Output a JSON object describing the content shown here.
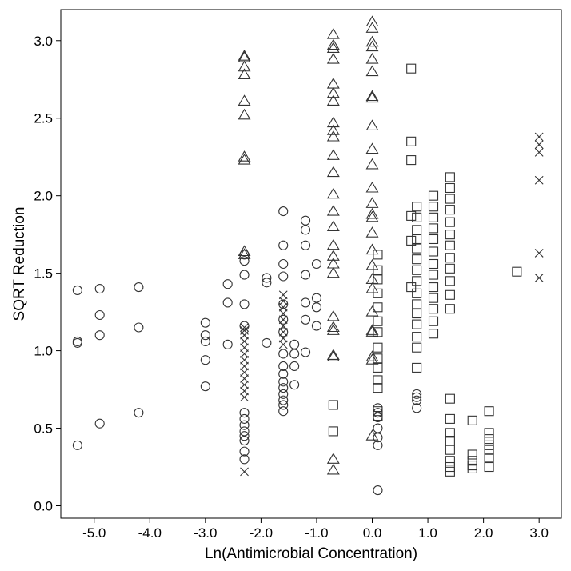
{
  "chart_data": {
    "type": "scatter",
    "title": "",
    "xlabel": "Ln(Antimicrobial Concentration)",
    "ylabel": "SQRT Reduction",
    "xlim": [
      -5.6,
      3.4
    ],
    "ylim": [
      -0.08,
      3.2
    ],
    "xticks": [
      -5.0,
      -4.0,
      -3.0,
      -2.0,
      -1.0,
      0.0,
      1.0,
      2.0,
      3.0
    ],
    "xtick_labels": [
      "-5.0",
      "-4.0",
      "-3.0",
      "-2.0",
      "-1.0",
      "0.0",
      "1.0",
      "2.0",
      "3.0"
    ],
    "yticks": [
      0.0,
      0.5,
      1.0,
      1.5,
      2.0,
      2.5,
      3.0
    ],
    "ytick_labels": [
      "0.0",
      "0.5",
      "1.0",
      "1.5",
      "2.0",
      "2.5",
      "3.0"
    ],
    "grid": false,
    "legend": "none",
    "series": [
      {
        "marker": "circle",
        "points": [
          [
            -5.3,
            1.39
          ],
          [
            -5.3,
            1.06
          ],
          [
            -5.3,
            1.05
          ],
          [
            -5.3,
            0.39
          ],
          [
            -4.9,
            1.4
          ],
          [
            -4.9,
            1.23
          ],
          [
            -4.9,
            1.1
          ],
          [
            -4.9,
            0.53
          ],
          [
            -4.2,
            1.41
          ],
          [
            -4.2,
            1.15
          ],
          [
            -4.2,
            0.6
          ],
          [
            -3.0,
            1.18
          ],
          [
            -3.0,
            1.1
          ],
          [
            -3.0,
            1.06
          ],
          [
            -3.0,
            0.94
          ],
          [
            -3.0,
            0.77
          ],
          [
            -2.6,
            1.43
          ],
          [
            -2.6,
            1.31
          ],
          [
            -2.6,
            1.04
          ],
          [
            -2.3,
            1.62
          ],
          [
            -2.3,
            1.58
          ],
          [
            -2.3,
            1.49
          ],
          [
            -2.3,
            1.3
          ],
          [
            -2.3,
            1.16
          ],
          [
            -2.3,
            0.6
          ],
          [
            -2.3,
            0.56
          ],
          [
            -2.3,
            0.52
          ],
          [
            -2.3,
            0.48
          ],
          [
            -2.3,
            0.45
          ],
          [
            -2.3,
            0.42
          ],
          [
            -2.3,
            0.35
          ],
          [
            -2.3,
            0.3
          ],
          [
            -1.9,
            1.47
          ],
          [
            -1.9,
            1.44
          ],
          [
            -1.9,
            1.05
          ],
          [
            -1.6,
            1.9
          ],
          [
            -1.6,
            1.68
          ],
          [
            -1.6,
            1.56
          ],
          [
            -1.6,
            1.48
          ],
          [
            -1.6,
            1.3
          ],
          [
            -1.6,
            1.2
          ],
          [
            -1.6,
            1.12
          ],
          [
            -1.6,
            0.98
          ],
          [
            -1.6,
            0.9
          ],
          [
            -1.6,
            0.85
          ],
          [
            -1.6,
            0.8
          ],
          [
            -1.6,
            0.76
          ],
          [
            -1.6,
            0.72
          ],
          [
            -1.6,
            0.68
          ],
          [
            -1.6,
            0.65
          ],
          [
            -1.6,
            0.61
          ],
          [
            -1.4,
            1.04
          ],
          [
            -1.4,
            0.98
          ],
          [
            -1.4,
            0.9
          ],
          [
            -1.4,
            0.78
          ],
          [
            -1.2,
            1.84
          ],
          [
            -1.2,
            1.78
          ],
          [
            -1.2,
            1.68
          ],
          [
            -1.2,
            1.49
          ],
          [
            -1.2,
            1.31
          ],
          [
            -1.2,
            1.2
          ],
          [
            -1.2,
            0.99
          ],
          [
            -1.0,
            1.56
          ],
          [
            -1.0,
            1.34
          ],
          [
            -1.0,
            1.28
          ],
          [
            -1.0,
            1.16
          ],
          [
            0.1,
            0.63
          ],
          [
            0.1,
            0.6
          ],
          [
            0.1,
            0.57
          ],
          [
            0.1,
            0.5
          ],
          [
            0.1,
            0.44
          ],
          [
            0.1,
            0.39
          ],
          [
            0.1,
            0.1
          ],
          [
            0.8,
            0.72
          ],
          [
            0.8,
            0.7
          ],
          [
            0.8,
            0.68
          ],
          [
            0.8,
            0.63
          ]
        ]
      },
      {
        "marker": "triangle",
        "points": [
          [
            -2.3,
            2.9
          ],
          [
            -2.3,
            2.89
          ],
          [
            -2.3,
            2.83
          ],
          [
            -2.3,
            2.78
          ],
          [
            -2.3,
            2.61
          ],
          [
            -2.3,
            2.52
          ],
          [
            -2.3,
            2.25
          ],
          [
            -2.3,
            2.23
          ],
          [
            -2.3,
            1.64
          ],
          [
            -2.3,
            1.62
          ],
          [
            -0.7,
            3.04
          ],
          [
            -0.7,
            2.97
          ],
          [
            -0.7,
            2.95
          ],
          [
            -0.7,
            2.88
          ],
          [
            -0.7,
            2.72
          ],
          [
            -0.7,
            2.66
          ],
          [
            -0.7,
            2.61
          ],
          [
            -0.7,
            2.47
          ],
          [
            -0.7,
            2.42
          ],
          [
            -0.7,
            2.38
          ],
          [
            -0.7,
            2.26
          ],
          [
            -0.7,
            2.15
          ],
          [
            -0.7,
            2.01
          ],
          [
            -0.7,
            1.9
          ],
          [
            -0.7,
            1.8
          ],
          [
            -0.7,
            1.68
          ],
          [
            -0.7,
            1.61
          ],
          [
            -0.7,
            1.56
          ],
          [
            -0.7,
            1.5
          ],
          [
            -0.7,
            1.22
          ],
          [
            -0.7,
            1.15
          ],
          [
            -0.7,
            1.13
          ],
          [
            -0.7,
            0.97
          ],
          [
            -0.7,
            0.96
          ],
          [
            -0.7,
            0.3
          ],
          [
            -0.7,
            0.23
          ],
          [
            0.0,
            3.12
          ],
          [
            0.0,
            3.08
          ],
          [
            0.0,
            2.99
          ],
          [
            0.0,
            2.96
          ],
          [
            0.0,
            2.88
          ],
          [
            0.0,
            2.8
          ],
          [
            0.0,
            2.64
          ],
          [
            0.0,
            2.63
          ],
          [
            0.0,
            2.45
          ],
          [
            0.0,
            2.3
          ],
          [
            0.0,
            2.2
          ],
          [
            0.0,
            2.05
          ],
          [
            0.0,
            1.95
          ],
          [
            0.0,
            1.88
          ],
          [
            0.0,
            1.86
          ],
          [
            0.0,
            1.76
          ],
          [
            0.0,
            1.65
          ],
          [
            0.0,
            1.55
          ],
          [
            0.0,
            1.46
          ],
          [
            0.0,
            1.4
          ],
          [
            0.0,
            1.25
          ],
          [
            0.0,
            1.13
          ],
          [
            0.0,
            1.12
          ],
          [
            0.0,
            0.96
          ],
          [
            0.0,
            0.94
          ],
          [
            0.0,
            0.45
          ]
        ]
      },
      {
        "marker": "cross",
        "points": [
          [
            -2.3,
            1.15
          ],
          [
            -2.3,
            1.13
          ],
          [
            -2.3,
            1.1
          ],
          [
            -2.3,
            1.06
          ],
          [
            -2.3,
            1.02
          ],
          [
            -2.3,
            0.98
          ],
          [
            -2.3,
            0.94
          ],
          [
            -2.3,
            0.9
          ],
          [
            -2.3,
            0.86
          ],
          [
            -2.3,
            0.82
          ],
          [
            -2.3,
            0.78
          ],
          [
            -2.3,
            0.74
          ],
          [
            -2.3,
            0.7
          ],
          [
            -2.3,
            0.22
          ],
          [
            -1.6,
            1.36
          ],
          [
            -1.6,
            1.32
          ],
          [
            -1.6,
            1.28
          ],
          [
            -1.6,
            1.24
          ],
          [
            -1.6,
            1.2
          ],
          [
            -1.6,
            1.16
          ],
          [
            -1.6,
            1.12
          ],
          [
            -1.6,
            1.08
          ],
          [
            -1.6,
            1.04
          ],
          [
            3.0,
            2.38
          ],
          [
            3.0,
            2.33
          ],
          [
            3.0,
            2.28
          ],
          [
            3.0,
            2.1
          ],
          [
            3.0,
            1.63
          ],
          [
            3.0,
            1.47
          ]
        ]
      },
      {
        "marker": "square",
        "points": [
          [
            -0.7,
            0.65
          ],
          [
            -0.7,
            0.48
          ],
          [
            0.1,
            1.62
          ],
          [
            0.1,
            1.52
          ],
          [
            0.1,
            1.46
          ],
          [
            0.1,
            1.37
          ],
          [
            0.1,
            1.28
          ],
          [
            0.1,
            1.19
          ],
          [
            0.1,
            1.12
          ],
          [
            0.1,
            1.02
          ],
          [
            0.1,
            0.95
          ],
          [
            0.1,
            0.89
          ],
          [
            0.1,
            0.81
          ],
          [
            0.1,
            0.76
          ],
          [
            0.1,
            0.61
          ],
          [
            0.1,
            0.58
          ],
          [
            0.7,
            2.82
          ],
          [
            0.7,
            2.35
          ],
          [
            0.7,
            2.23
          ],
          [
            0.7,
            1.87
          ],
          [
            0.7,
            1.71
          ],
          [
            0.7,
            1.41
          ],
          [
            0.8,
            1.93
          ],
          [
            0.8,
            1.86
          ],
          [
            0.8,
            1.78
          ],
          [
            0.8,
            1.72
          ],
          [
            0.8,
            1.66
          ],
          [
            0.8,
            1.59
          ],
          [
            0.8,
            1.52
          ],
          [
            0.8,
            1.45
          ],
          [
            0.8,
            1.37
          ],
          [
            0.8,
            1.3
          ],
          [
            0.8,
            1.24
          ],
          [
            0.8,
            1.17
          ],
          [
            0.8,
            1.09
          ],
          [
            0.8,
            1.02
          ],
          [
            0.8,
            0.89
          ],
          [
            1.1,
            2.0
          ],
          [
            1.1,
            1.93
          ],
          [
            1.1,
            1.86
          ],
          [
            1.1,
            1.79
          ],
          [
            1.1,
            1.72
          ],
          [
            1.1,
            1.64
          ],
          [
            1.1,
            1.56
          ],
          [
            1.1,
            1.49
          ],
          [
            1.1,
            1.41
          ],
          [
            1.1,
            1.34
          ],
          [
            1.1,
            1.27
          ],
          [
            1.1,
            1.19
          ],
          [
            1.1,
            1.11
          ],
          [
            1.4,
            2.12
          ],
          [
            1.4,
            2.05
          ],
          [
            1.4,
            1.98
          ],
          [
            1.4,
            1.91
          ],
          [
            1.4,
            1.83
          ],
          [
            1.4,
            1.75
          ],
          [
            1.4,
            1.68
          ],
          [
            1.4,
            1.6
          ],
          [
            1.4,
            1.53
          ],
          [
            1.4,
            1.45
          ],
          [
            1.4,
            1.36
          ],
          [
            1.4,
            1.27
          ],
          [
            1.4,
            0.69
          ],
          [
            1.4,
            0.56
          ],
          [
            1.4,
            0.47
          ],
          [
            1.4,
            0.42
          ],
          [
            1.4,
            0.36
          ],
          [
            1.4,
            0.29
          ],
          [
            1.4,
            0.25
          ],
          [
            1.4,
            0.22
          ],
          [
            1.8,
            0.55
          ],
          [
            1.8,
            0.33
          ],
          [
            1.8,
            0.29
          ],
          [
            1.8,
            0.26
          ],
          [
            1.8,
            0.24
          ],
          [
            2.1,
            0.61
          ],
          [
            2.1,
            0.47
          ],
          [
            2.1,
            0.43
          ],
          [
            2.1,
            0.39
          ],
          [
            2.1,
            0.36
          ],
          [
            2.1,
            0.31
          ],
          [
            2.1,
            0.25
          ],
          [
            2.6,
            1.51
          ]
        ]
      }
    ]
  }
}
